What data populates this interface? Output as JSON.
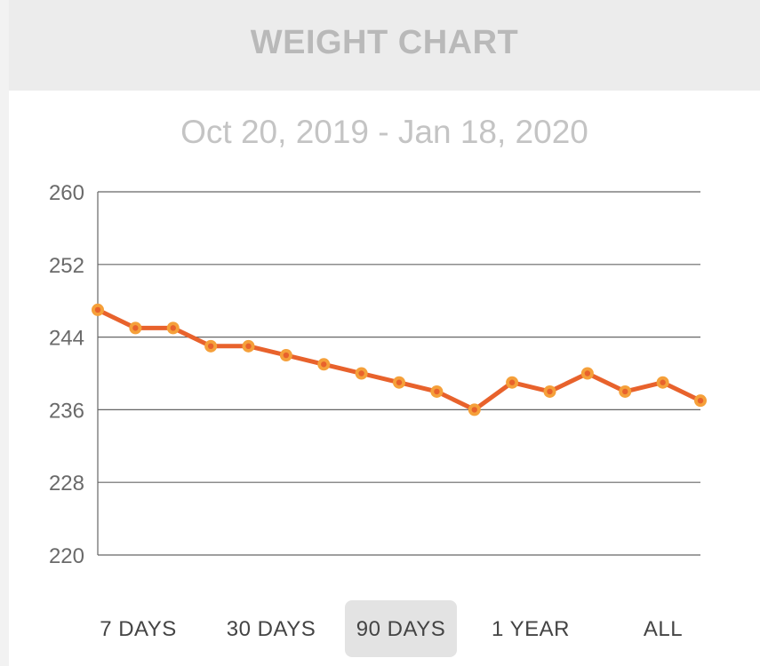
{
  "header": {
    "title": "WEIGHT CHART"
  },
  "date_range": "Oct 20, 2019 - Jan 18, 2020",
  "range_options": [
    {
      "label": "7 DAYS",
      "selected": false
    },
    {
      "label": "30 DAYS",
      "selected": false
    },
    {
      "label": "90 DAYS",
      "selected": true
    },
    {
      "label": "1 YEAR",
      "selected": false
    },
    {
      "label": "ALL",
      "selected": false
    }
  ],
  "colors": {
    "line": "#e8622c",
    "point_outer": "#f5a03a",
    "point_inner": "#e8622c",
    "grid": "#666666",
    "axis_text": "#6a6a6a"
  },
  "chart_data": {
    "type": "line",
    "title": "",
    "xlabel": "",
    "ylabel": "",
    "ylim": [
      220,
      260
    ],
    "yticks": [
      220,
      228,
      236,
      244,
      252,
      260
    ],
    "grid": true,
    "series": [
      {
        "values": [
          247,
          245,
          245,
          243,
          243,
          242,
          241,
          240,
          239,
          238,
          236,
          239,
          238,
          240,
          238,
          239,
          237
        ]
      }
    ]
  }
}
